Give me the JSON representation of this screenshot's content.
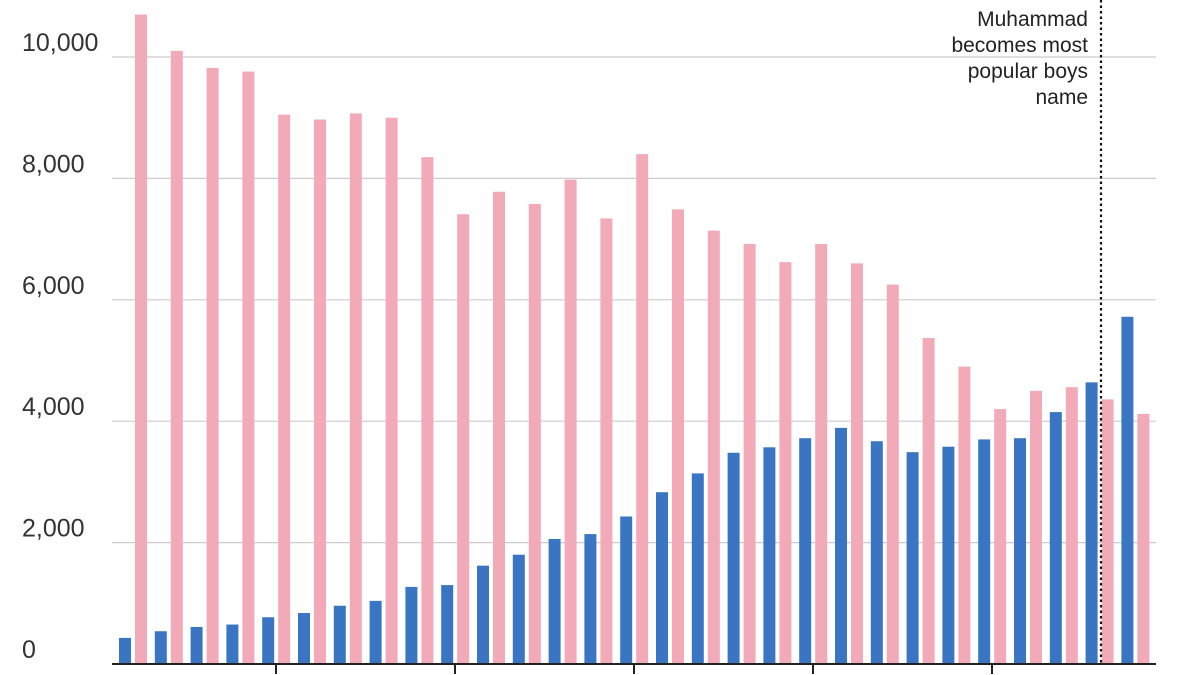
{
  "chart_data": {
    "type": "bar",
    "title": "",
    "xlabel": "",
    "ylabel": "",
    "ylim": [
      0,
      10800
    ],
    "y_ticks": [
      {
        "value": 0,
        "label": "0"
      },
      {
        "value": 2000,
        "label": "2,000"
      },
      {
        "value": 4000,
        "label": "4,000"
      },
      {
        "value": 6000,
        "label": "6,000"
      },
      {
        "value": 8000,
        "label": "8,000"
      },
      {
        "value": 10000,
        "label": "10,000"
      }
    ],
    "grid": true,
    "legend": "none",
    "colors": {
      "pink": "#f2aab9",
      "blue": "#3a75c4",
      "grid": "#cccccc",
      "axis": "#222222"
    },
    "series": [
      {
        "color": "#f2aab9",
        "values": [
          10700,
          10100,
          9820,
          9760,
          9050,
          8970,
          9070,
          9000,
          8350,
          7410,
          7780,
          7580,
          7980,
          7340,
          8400,
          7490,
          7140,
          6920,
          6620,
          6920,
          6600,
          6250,
          5370,
          4900,
          4200,
          4500,
          4560,
          4360,
          4120
        ]
      },
      {
        "color": "#3a75c4",
        "values": [
          430,
          540,
          610,
          650,
          770,
          840,
          960,
          1040,
          1270,
          1300,
          1620,
          1800,
          2060,
          2140,
          2430,
          2830,
          3140,
          3480,
          3570,
          3720,
          3890,
          3670,
          3490,
          3580,
          3700,
          3720,
          4150,
          4640,
          5720
        ]
      }
    ],
    "annotations": [
      {
        "text_lines": [
          "Muhammad",
          "becomes most",
          "popular boys",
          "name"
        ],
        "position": "before-last-group",
        "style": "dotted-vertical-line"
      }
    ]
  }
}
